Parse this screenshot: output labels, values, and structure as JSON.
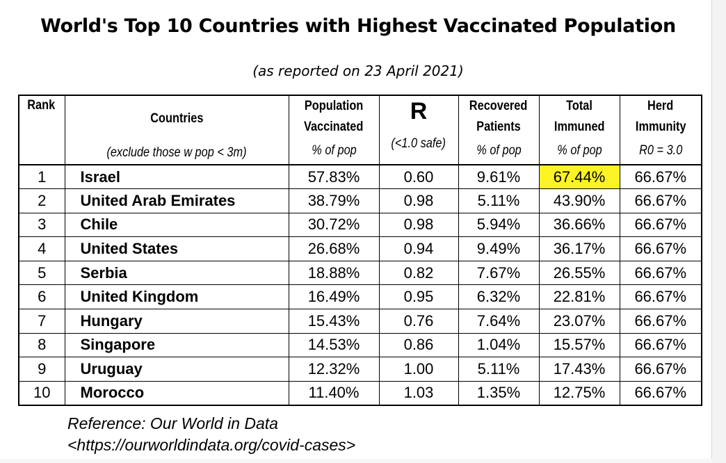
{
  "title": "World's Top 10 Countries with Highest Vaccinated Population",
  "subtitle": "(as reported on 23 April 2021)",
  "headers": {
    "rank": "Rank",
    "countries": "Countries",
    "countries_note": "(exclude those w pop < 3m)",
    "vaccinated_line1": "Population",
    "vaccinated_line2": "Vaccinated",
    "vaccinated_unit": "% of pop",
    "r": "R",
    "r_unit": "(<1.0 safe)",
    "recovered_line1": "Recovered",
    "recovered_line2": "Patients",
    "recovered_unit": "% of pop",
    "immuned_line1": "Total",
    "immuned_line2": "Immuned",
    "immuned_unit": "% of pop",
    "herd_line1": "Herd",
    "herd_line2": "Immunity",
    "herd_unit": "R0 = 3.0"
  },
  "rows": [
    {
      "rank": "1",
      "country": "Israel",
      "vaccinated": "57.83%",
      "r": "0.60",
      "recovered": "9.61%",
      "immuned": "67.44%",
      "herd": "66.67%"
    },
    {
      "rank": "2",
      "country": "United Arab Emirates",
      "vaccinated": "38.79%",
      "r": "0.98",
      "recovered": "5.11%",
      "immuned": "43.90%",
      "herd": "66.67%"
    },
    {
      "rank": "3",
      "country": "Chile",
      "vaccinated": "30.72%",
      "r": "0.98",
      "recovered": "5.94%",
      "immuned": "36.66%",
      "herd": "66.67%"
    },
    {
      "rank": "4",
      "country": "United States",
      "vaccinated": "26.68%",
      "r": "0.94",
      "recovered": "9.49%",
      "immuned": "36.17%",
      "herd": "66.67%"
    },
    {
      "rank": "5",
      "country": "Serbia",
      "vaccinated": "18.88%",
      "r": "0.82",
      "recovered": "7.67%",
      "immuned": "26.55%",
      "herd": "66.67%"
    },
    {
      "rank": "6",
      "country": "United Kingdom",
      "vaccinated": "16.49%",
      "r": "0.95",
      "recovered": "6.32%",
      "immuned": "22.81%",
      "herd": "66.67%"
    },
    {
      "rank": "7",
      "country": "Hungary",
      "vaccinated": "15.43%",
      "r": "0.76",
      "recovered": "7.64%",
      "immuned": "23.07%",
      "herd": "66.67%"
    },
    {
      "rank": "8",
      "country": "Singapore",
      "vaccinated": "14.53%",
      "r": "0.86",
      "recovered": "1.04%",
      "immuned": "15.57%",
      "herd": "66.67%"
    },
    {
      "rank": "9",
      "country": "Uruguay",
      "vaccinated": "12.32%",
      "r": "1.00",
      "recovered": "5.11%",
      "immuned": "17.43%",
      "herd": "66.67%"
    },
    {
      "rank": "10",
      "country": "Morocco",
      "vaccinated": "11.40%",
      "r": "1.03",
      "recovered": "1.35%",
      "immuned": "12.75%",
      "herd": "66.67%"
    }
  ],
  "highlight_color": "#fbf324",
  "reference_line1": "Reference: Our World in Data",
  "reference_line2": "<https://ourworldindata.org/covid-cases>"
}
